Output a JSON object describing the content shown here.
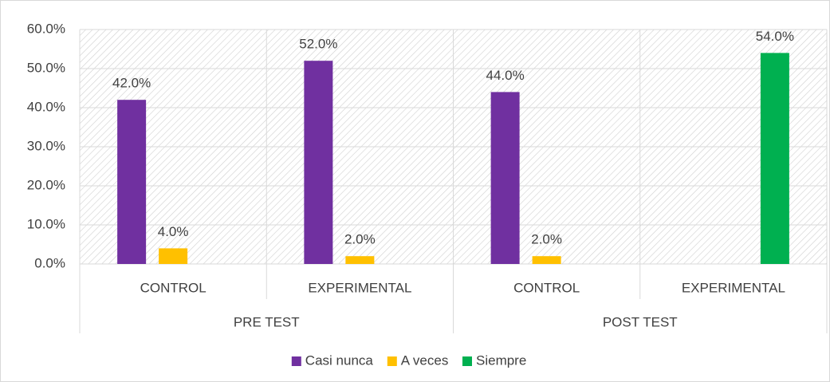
{
  "chart_data": {
    "type": "bar",
    "categories": [
      "CONTROL",
      "EXPERIMENTAL",
      "CONTROL",
      "EXPERIMENTAL"
    ],
    "group_labels": [
      "PRE TEST",
      "POST TEST"
    ],
    "series": [
      {
        "name": "Casi nunca",
        "color": "#7030a0",
        "values": [
          42,
          52,
          44,
          null
        ],
        "value_labels": [
          "42.0%",
          "52.0%",
          "44.0%",
          null
        ]
      },
      {
        "name": "A veces",
        "color": "#ffc000",
        "values": [
          4,
          2,
          2,
          null
        ],
        "value_labels": [
          "4.0%",
          "2.0%",
          "2.0%",
          null
        ]
      },
      {
        "name": "Siempre",
        "color": "#00b050",
        "values": [
          null,
          null,
          null,
          54
        ],
        "value_labels": [
          null,
          null,
          null,
          "54.0%"
        ]
      }
    ],
    "ylim": [
      0,
      60
    ],
    "yticks": [
      {
        "value": 0,
        "label": "0.0%"
      },
      {
        "value": 10,
        "label": "10.0%"
      },
      {
        "value": 20,
        "label": "20.0%"
      },
      {
        "value": 30,
        "label": "30.0%"
      },
      {
        "value": 40,
        "label": "40.0%"
      },
      {
        "value": 50,
        "label": "50.0%"
      },
      {
        "value": 60,
        "label": "60.0%"
      }
    ],
    "grid": true,
    "legend": "bottom"
  }
}
